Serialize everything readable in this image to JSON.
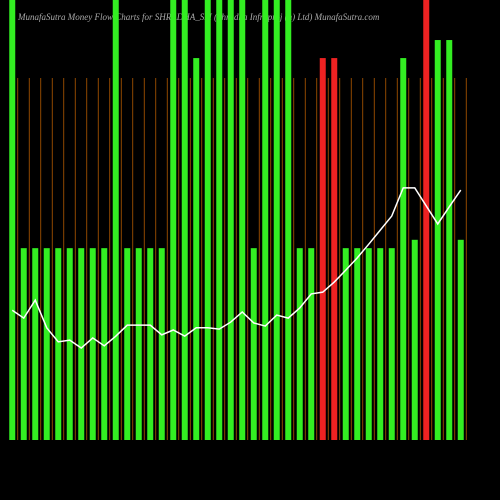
{
  "chart_data": {
    "type": "bar",
    "title": "MunafaSutra  Money Flow  Charts for SHRADHA_SM  (Shradha  Infraproj  (n) Ltd) MunafaSutra.com",
    "categories": [
      null,
      null,
      null,
      null,
      null,
      null,
      null,
      null,
      null,
      null,
      null,
      null,
      null,
      null,
      null,
      null,
      null,
      null,
      null,
      null,
      null,
      null,
      null,
      null,
      null,
      null,
      null,
      null,
      null,
      null,
      null,
      null,
      null,
      null,
      null,
      null,
      null,
      null,
      null,
      null
    ],
    "values": [
      100,
      43.6,
      43.6,
      43.6,
      43.6,
      43.6,
      43.6,
      43.6,
      43.6,
      100,
      43.6,
      43.6,
      43.6,
      43.6,
      100,
      100,
      86.8,
      100,
      100,
      100,
      100,
      43.6,
      100,
      100,
      100,
      43.6,
      43.6,
      86.8,
      86.8,
      43.6,
      43.6,
      43.6,
      43.6,
      43.6,
      86.8,
      45.5,
      100,
      90.9,
      90.9,
      45.5
    ],
    "colors": [
      "#33ee22",
      "#33ee22",
      "#33ee22",
      "#33ee22",
      "#33ee22",
      "#33ee22",
      "#33ee22",
      "#33ee22",
      "#33ee22",
      "#33ee22",
      "#33ee22",
      "#33ee22",
      "#33ee22",
      "#33ee22",
      "#33ee22",
      "#33ee22",
      "#33ee22",
      "#33ee22",
      "#33ee22",
      "#33ee22",
      "#33ee22",
      "#33ee22",
      "#33ee22",
      "#33ee22",
      "#33ee22",
      "#33ee22",
      "#33ee22",
      "#ee2222",
      "#ee2222",
      "#33ee22",
      "#33ee22",
      "#33ee22",
      "#33ee22",
      "#33ee22",
      "#33ee22",
      "#33ee22",
      "#ee2222",
      "#33ee22",
      "#33ee22",
      "#33ee22"
    ],
    "line_values": [
      29.5,
      27.7,
      31.8,
      25.5,
      22.3,
      22.7,
      20.9,
      23.2,
      21.4,
      23.6,
      26.1,
      26.1,
      26.1,
      23.9,
      25,
      23.6,
      25.5,
      25.5,
      25.2,
      26.8,
      29.1,
      26.6,
      25.9,
      28.4,
      27.7,
      30,
      33.2,
      33.6,
      35.9,
      38.6,
      41.4,
      44.5,
      47.7,
      50.9,
      57.3,
      57.3,
      53.2,
      49.1,
      53,
      56.8
    ],
    "line_color": "#ffffff",
    "ylim": [
      0,
      100
    ]
  }
}
